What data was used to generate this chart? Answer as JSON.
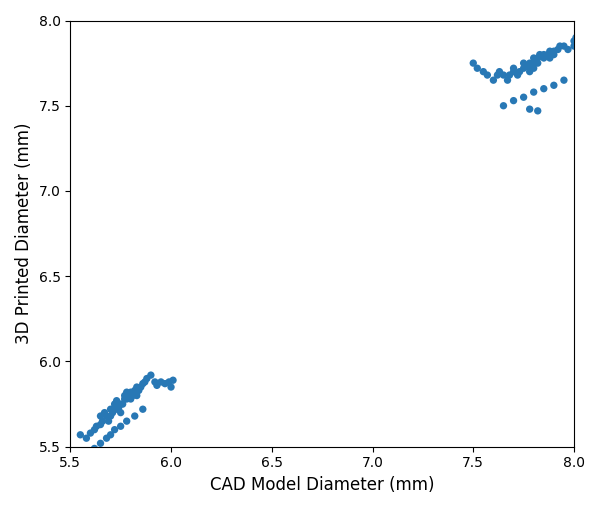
{
  "title": "",
  "xlabel": "CAD Model Diameter (mm)",
  "ylabel": "3D Printed Diameter (mm)",
  "xlim": [
    5.5,
    8.0
  ],
  "ylim": [
    5.5,
    8.0
  ],
  "xticks": [
    5.5,
    6.0,
    6.5,
    7.0,
    7.5,
    8.0
  ],
  "yticks": [
    5.5,
    6.0,
    6.5,
    7.0,
    7.5,
    8.0
  ],
  "point_color": "#2878b5",
  "point_size": 28,
  "background_color": "#ffffff",
  "cluster1_x": [
    5.55,
    5.58,
    5.6,
    5.62,
    5.63,
    5.65,
    5.65,
    5.66,
    5.67,
    5.68,
    5.69,
    5.7,
    5.7,
    5.71,
    5.72,
    5.72,
    5.73,
    5.73,
    5.74,
    5.75,
    5.75,
    5.76,
    5.77,
    5.77,
    5.78,
    5.78,
    5.79,
    5.8,
    5.8,
    5.81,
    5.82,
    5.83,
    5.83,
    5.84,
    5.85,
    5.86,
    5.87,
    5.88,
    5.9,
    5.92,
    5.93,
    5.95,
    5.97,
    5.99,
    6.0,
    6.01,
    5.62,
    5.65,
    5.68,
    5.7,
    5.72,
    5.75,
    5.78,
    5.82,
    5.86
  ],
  "cluster1_y": [
    5.57,
    5.55,
    5.58,
    5.6,
    5.62,
    5.63,
    5.68,
    5.65,
    5.7,
    5.68,
    5.65,
    5.68,
    5.72,
    5.7,
    5.73,
    5.75,
    5.72,
    5.77,
    5.73,
    5.7,
    5.75,
    5.75,
    5.78,
    5.8,
    5.78,
    5.82,
    5.8,
    5.78,
    5.82,
    5.8,
    5.83,
    5.8,
    5.85,
    5.83,
    5.85,
    5.87,
    5.88,
    5.9,
    5.92,
    5.88,
    5.86,
    5.88,
    5.87,
    5.88,
    5.85,
    5.89,
    5.49,
    5.52,
    5.55,
    5.57,
    5.6,
    5.62,
    5.65,
    5.68,
    5.72
  ],
  "cluster2_x": [
    7.5,
    7.52,
    7.55,
    7.57,
    7.6,
    7.62,
    7.63,
    7.65,
    7.67,
    7.68,
    7.7,
    7.7,
    7.72,
    7.73,
    7.75,
    7.75,
    7.77,
    7.78,
    7.78,
    7.8,
    7.8,
    7.8,
    7.82,
    7.82,
    7.83,
    7.85,
    7.85,
    7.87,
    7.88,
    7.88,
    7.9,
    7.9,
    7.92,
    7.93,
    7.95,
    7.97,
    8.0,
    8.0,
    8.01,
    7.65,
    7.7,
    7.75,
    7.8,
    7.85,
    7.9,
    7.95,
    7.78,
    7.82
  ],
  "cluster2_y": [
    7.75,
    7.72,
    7.7,
    7.68,
    7.65,
    7.68,
    7.7,
    7.68,
    7.65,
    7.68,
    7.7,
    7.72,
    7.68,
    7.7,
    7.72,
    7.75,
    7.73,
    7.7,
    7.75,
    7.72,
    7.75,
    7.78,
    7.75,
    7.78,
    7.8,
    7.78,
    7.8,
    7.8,
    7.78,
    7.82,
    7.8,
    7.82,
    7.83,
    7.85,
    7.85,
    7.83,
    7.85,
    7.88,
    7.9,
    7.5,
    7.53,
    7.55,
    7.58,
    7.6,
    7.62,
    7.65,
    7.48,
    7.47
  ]
}
